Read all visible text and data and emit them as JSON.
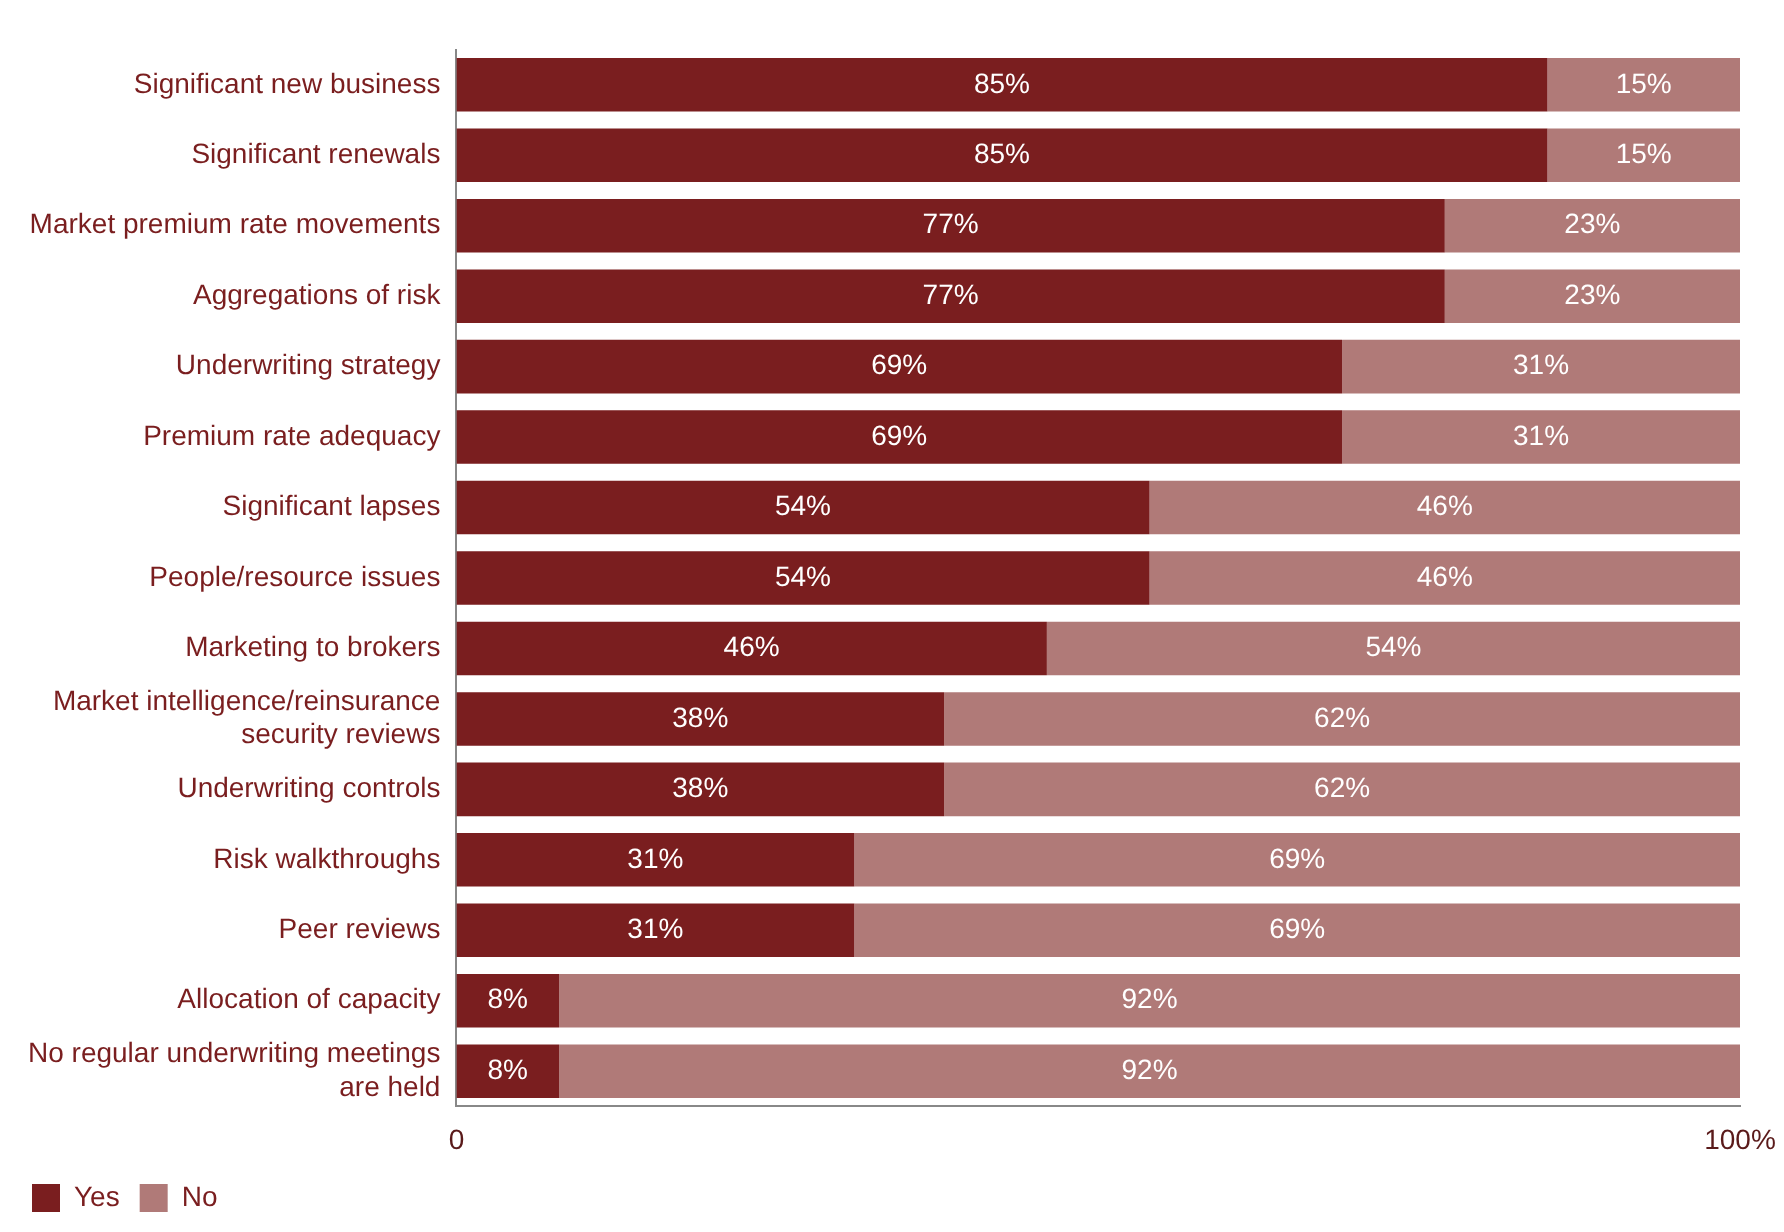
{
  "chart_data": {
    "type": "bar",
    "orientation": "horizontal",
    "stacked": true,
    "categories": [
      "Significant new business",
      "Significant renewals",
      "Market premium rate movements",
      "Aggregations of risk",
      "Underwriting strategy",
      "Premium rate adequacy",
      "Significant lapses",
      "People/resource issues",
      "Marketing to brokers",
      "Market intelligence/reinsurance security reviews",
      "Underwriting controls",
      "Risk walkthroughs",
      "Peer reviews",
      "Allocation of capacity",
      "No regular underwriting meetings are held"
    ],
    "series": [
      {
        "name": "Yes",
        "color": "#7a1e1f",
        "values": [
          85,
          85,
          77,
          77,
          69,
          69,
          54,
          54,
          46,
          38,
          38,
          31,
          31,
          8,
          8
        ],
        "value_labels": [
          "85%",
          "85%",
          "77%",
          "77%",
          "69%",
          "69%",
          "54%",
          "54%",
          "46%",
          "38%",
          "38%",
          "31%",
          "31%",
          "8%",
          "8%"
        ]
      },
      {
        "name": "No",
        "color": "#b07a78",
        "values": [
          15,
          15,
          23,
          23,
          31,
          31,
          46,
          46,
          54,
          62,
          62,
          69,
          69,
          92,
          92
        ],
        "value_labels": [
          "15%",
          "15%",
          "23%",
          "23%",
          "31%",
          "31%",
          "46%",
          "46%",
          "54%",
          "62%",
          "62%",
          "69%",
          "69%",
          "92%",
          "92%"
        ]
      }
    ],
    "xlim": [
      0,
      100
    ],
    "xticks": [
      0,
      {
        "value": 100,
        "label": "100%"
      }
    ],
    "grid": false,
    "legend": "bottom left"
  }
}
